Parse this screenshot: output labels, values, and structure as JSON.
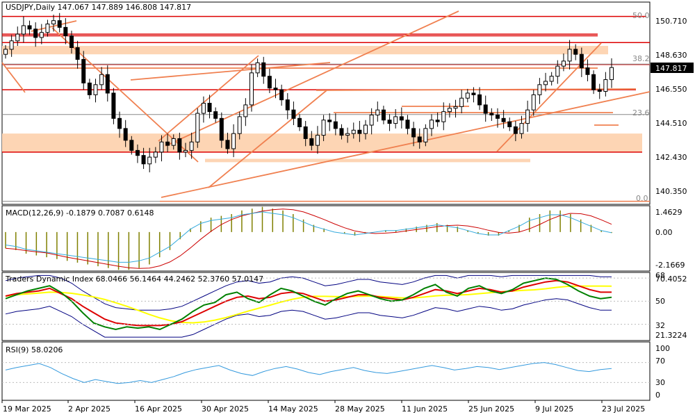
{
  "panels": {
    "main": {
      "header": "USDJPY,Daily  147.067 147.889 146.808 147.817",
      "price_ticks": [
        "150.710",
        "148.630",
        "146.550",
        "144.510",
        "142.430",
        "140.350"
      ],
      "current_price": "147.817",
      "fib_labels": [
        "50.0",
        "38.2",
        "23.6",
        "0.0"
      ]
    },
    "macd": {
      "header": "MACD(12,26,9) -0.1879 0.7087 0.6148",
      "ticks": [
        "1.4629",
        "0.00",
        "-2.1669"
      ]
    },
    "tdi": {
      "header": "Traders Dynamic Index 68.0466 56.1464 44.2462 52.3760 57.0147",
      "ticks": [
        "68",
        "70.4052",
        "50",
        "32",
        "21.3224"
      ]
    },
    "rsi": {
      "header": "RSI(9) 58.0206",
      "ticks": [
        "100",
        "70",
        "30",
        "0"
      ]
    }
  },
  "date_labels": [
    "19 Mar 2025",
    "2 Apr 2025",
    "16 Apr 2025",
    "30 Apr 2025",
    "14 May 2025",
    "28 May 2025",
    "11 Jun 2025",
    "25 Jun 2025",
    "9 Jul 2025",
    "23 Jul 2025"
  ],
  "colors": {
    "support_resistance": "#dd0000",
    "trendline": "#f08050",
    "zone": "#fdd5b4",
    "macd_hist": "#808000",
    "macd_signal": "#cc0000",
    "macd_line": "#33aadd",
    "tdi_band": "#000080",
    "tdi_price": "#008000",
    "tdi_signal": "#dd0000",
    "tdi_mid": "#ffff00",
    "rsi_line": "#3399dd"
  },
  "chart_data": [
    {
      "type": "candlestick",
      "title": "USDJPY,Daily",
      "x_labels": [
        "19 Mar 2025",
        "2 Apr 2025",
        "16 Apr 2025",
        "30 Apr 2025",
        "14 May 2025",
        "28 May 2025",
        "11 Jun 2025",
        "25 Jun 2025",
        "9 Jul 2025",
        "23 Jul 2025"
      ],
      "ylim": [
        139.7,
        151.7
      ],
      "last": {
        "open": 147.067,
        "high": 147.889,
        "low": 146.808,
        "close": 147.817
      },
      "closes": [
        148.9,
        149.4,
        149.8,
        150.3,
        150.1,
        149.6,
        149.9,
        150.4,
        150.6,
        150.2,
        149.7,
        149.0,
        148.3,
        146.9,
        146.2,
        146.8,
        147.4,
        146.3,
        144.8,
        144.2,
        143.5,
        142.9,
        142.6,
        142.1,
        142.5,
        142.8,
        143.4,
        143.2,
        143.6,
        142.8,
        142.9,
        143.4,
        145.1,
        145.7,
        145.2,
        144.8,
        143.5,
        143.0,
        143.9,
        144.9,
        145.6,
        147.5,
        148.1,
        147.3,
        146.6,
        146.5,
        145.9,
        145.3,
        144.8,
        144.3,
        143.6,
        143.2,
        143.8,
        144.7,
        144.6,
        144.2,
        143.8,
        143.9,
        144.1,
        143.9,
        144.4,
        145.0,
        145.3,
        144.7,
        144.5,
        144.9,
        144.7,
        144.2,
        143.7,
        143.4,
        144.2,
        144.7,
        144.6,
        145.2,
        145.4,
        145.5,
        146.0,
        146.3,
        146.2,
        145.6,
        145.1,
        145.0,
        144.8,
        144.6,
        144.3,
        143.9,
        144.5,
        145.3,
        146.2,
        146.8,
        147.0,
        147.3,
        147.9,
        148.2,
        148.9,
        148.6,
        147.8,
        147.4,
        146.5,
        146.4,
        147.1,
        147.817
      ],
      "horizontal_levels": [
        150.85,
        149.8,
        149.7,
        149.3,
        148.0,
        146.5,
        142.8
      ],
      "zones": [
        [
          148.6,
          149.1
        ],
        [
          142.8,
          143.9
        ],
        [
          142.2,
          142.4
        ]
      ],
      "fibonacci": {
        "50.0": 150.85,
        "38.2": 148.02,
        "23.6": 145.03,
        "0.0": 139.88
      }
    },
    {
      "type": "line",
      "title": "MACD(12,26,9)",
      "ylim": [
        -2.1669,
        1.4629
      ],
      "values": {
        "main": -0.1879,
        "signal": 0.7087,
        "histogram": 0.6148
      },
      "histogram_trend": [
        -0.9,
        -1.0,
        -1.2,
        -1.3,
        -1.4,
        -1.5,
        -1.6,
        -1.7,
        -1.8,
        -1.9,
        -2.0,
        -2.1,
        -2.1,
        -2.0,
        -1.8,
        -1.4,
        -1.0,
        -0.4,
        0.2,
        0.6,
        0.8,
        0.9,
        1.0,
        1.2,
        1.3,
        1.4,
        1.3,
        1.2,
        1.0,
        0.7,
        0.4,
        0.2,
        0.0,
        -0.1,
        -0.2,
        -0.1,
        0.0,
        0.1,
        0.1,
        0.2,
        0.3,
        0.4,
        0.5,
        0.4,
        0.3,
        0.1,
        -0.1,
        -0.2,
        -0.2,
        0.1,
        0.4,
        0.8,
        1.0,
        1.2,
        1.2,
        1.0,
        0.7,
        0.4,
        0.1,
        -0.05
      ]
    },
    {
      "type": "line",
      "title": "Traders Dynamic Index",
      "ylim": [
        21.3224,
        70.4052
      ],
      "values": [
        68.0466,
        56.1464,
        44.2462,
        52.376,
        57.0147
      ],
      "series": [
        {
          "name": "price",
          "values": [
            52,
            55,
            58,
            60,
            62,
            57,
            50,
            41,
            33,
            30,
            28,
            30,
            29,
            30,
            28,
            32,
            36,
            42,
            47,
            49,
            55,
            57,
            52,
            49,
            55,
            60,
            58,
            54,
            50,
            47,
            52,
            56,
            58,
            55,
            52,
            50,
            51,
            55,
            60,
            63,
            57,
            54,
            60,
            62,
            58,
            56,
            59,
            64,
            66,
            68,
            67,
            63,
            58,
            54,
            52,
            53
          ]
        },
        {
          "name": "signal",
          "values": [
            54,
            56,
            57,
            58,
            60,
            56,
            52,
            46,
            41,
            36,
            33,
            32,
            31,
            31,
            31,
            32,
            34,
            38,
            42,
            46,
            50,
            53,
            54,
            52,
            53,
            56,
            57,
            56,
            53,
            50,
            51,
            53,
            55,
            55,
            53,
            52,
            51,
            53,
            56,
            59,
            58,
            56,
            58,
            60,
            59,
            57,
            58,
            61,
            63,
            65,
            66,
            65,
            62,
            59,
            57,
            57
          ]
        }
      ]
    },
    {
      "type": "line",
      "title": "RSI(9)",
      "ylim": [
        0,
        100
      ],
      "value": 58.0206,
      "series": [
        {
          "name": "RSI(9)",
          "values": [
            55,
            60,
            64,
            68,
            60,
            48,
            38,
            30,
            36,
            32,
            28,
            30,
            34,
            30,
            36,
            42,
            50,
            56,
            60,
            64,
            55,
            48,
            44,
            52,
            58,
            62,
            57,
            50,
            46,
            52,
            56,
            60,
            54,
            50,
            48,
            52,
            56,
            60,
            64,
            60,
            55,
            58,
            62,
            60,
            56,
            60,
            64,
            68,
            70,
            66,
            60,
            54,
            52,
            56,
            58
          ]
        }
      ]
    }
  ]
}
